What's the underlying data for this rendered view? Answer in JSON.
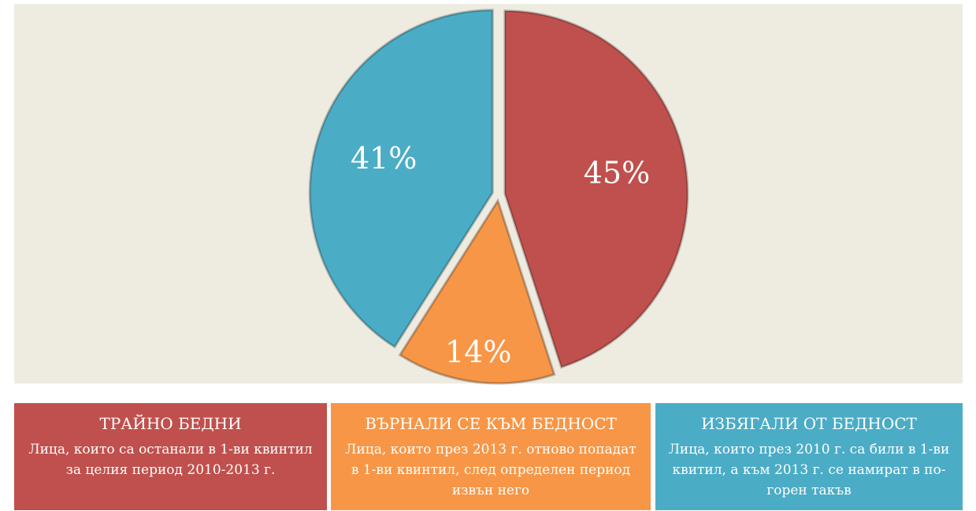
{
  "chart_data": {
    "type": "pie",
    "categories": [
      "ТРАЙНО БЕДНИ",
      "ВЪРНАЛИ СЕ КЪМ БЕДНОСТ",
      "ИЗБЯГАЛИ ОТ БЕДНОСТ"
    ],
    "descriptions": [
      "Лица, които са останали в 1-ви квинтил за целия период 2010-2013 г.",
      "Лица, които през 2013 г. отново попадат в 1-ви квинтил, след определен период извън него",
      "Лица, които през 2010 г. са били в 1-ви квитил, а към 2013 г. се намират в по-горен такъв"
    ],
    "values": [
      45,
      14,
      41
    ],
    "value_labels": [
      "45%",
      "14%",
      "41%"
    ],
    "colors": [
      "#c0504d",
      "#f79646",
      "#4bacc6"
    ]
  }
}
